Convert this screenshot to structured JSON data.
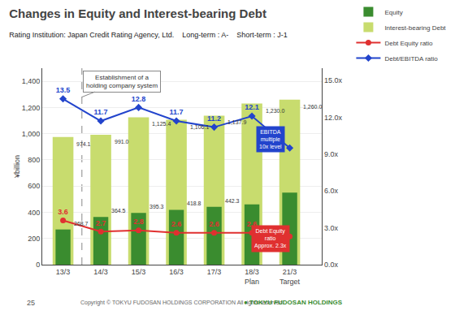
{
  "chart_data": {
    "type": "bar",
    "title": "Changes in Equity and Interest-bearing Debt",
    "subtitle": "Rating Institution: Japan Credit Rating Agency, Ltd.    Long-term : A-    Short-term : J-1",
    "ylabel": "¥billion",
    "categories": [
      "13/3",
      "14/3",
      "15/3",
      "16/3",
      "17/3",
      "18/3\nPlan",
      "21/3\nTarget"
    ],
    "series": [
      {
        "name": "Equity",
        "type": "bar",
        "color": "#3a8c2f",
        "values": [
          268.7,
          364.5,
          395.3,
          418.8,
          442.3,
          460.0,
          550.0
        ],
        "value_labels": [
          "268.7",
          "364.5",
          "395.3",
          "418.8",
          "442.3",
          null,
          null
        ]
      },
      {
        "name": "Interest-bearing Debt",
        "type": "bar",
        "color": "#c8dc6e",
        "values": [
          974.1,
          991.0,
          1125.4,
          1106.1,
          1137.9,
          1230.0,
          1260.0
        ],
        "value_labels": [
          "974.1",
          "991.0",
          "1,125.4",
          "1,106.1",
          "1,137.9",
          "1,230.0",
          "1,260.0"
        ]
      },
      {
        "name": "Debt Equity ratio",
        "type": "line",
        "axis": "y2",
        "color": "#e03030",
        "marker": "circle",
        "values": [
          3.6,
          2.7,
          2.8,
          2.6,
          2.6,
          2.6,
          2.3
        ],
        "value_labels": [
          "3.6",
          "2.7",
          "2.8",
          "2.6",
          "2.6",
          "2.6",
          null
        ]
      },
      {
        "name": "Debt/EBITDA ratio",
        "type": "line",
        "axis": "y2",
        "color": "#2244cc",
        "marker": "diamond",
        "values": [
          13.5,
          11.7,
          12.8,
          11.7,
          11.2,
          12.1,
          9.5
        ],
        "value_labels": [
          "13.5",
          "11.7",
          "12.8",
          "11.7",
          "11.2",
          "12.1",
          null
        ]
      }
    ],
    "ylim": [
      0,
      1500
    ],
    "yticks": [
      0,
      200,
      400,
      600,
      800,
      {
        "value": 1000,
        "label": "1,000"
      },
      {
        "value": 1200,
        "label": "1,200"
      },
      {
        "value": 1400,
        "label": "1,400"
      }
    ],
    "y2lim": [
      0,
      16.0
    ],
    "y2ticks": [
      {
        "value": 0,
        "label": "0.0x"
      },
      {
        "value": 3,
        "label": "3.0x"
      },
      {
        "value": 6,
        "label": "6.0x"
      },
      {
        "value": 9,
        "label": "9.0x"
      },
      {
        "value": 12,
        "label": "12.0x"
      },
      {
        "value": 15,
        "label": "15.0x"
      }
    ],
    "grid": true,
    "legend": "upper right",
    "data_labels": true,
    "annotations": [
      "Establishment of a\nholding company system",
      "EBITDA\nmultiple\n10x level",
      "Debt Equity\nratio\nApprox. 2.3x",
      "25",
      "Copyright © TOKYU FUDOSAN HOLDINGS CORPORATION All rights reserved.",
      "● TOKYU FUDOSAN HOLDINGS"
    ]
  }
}
